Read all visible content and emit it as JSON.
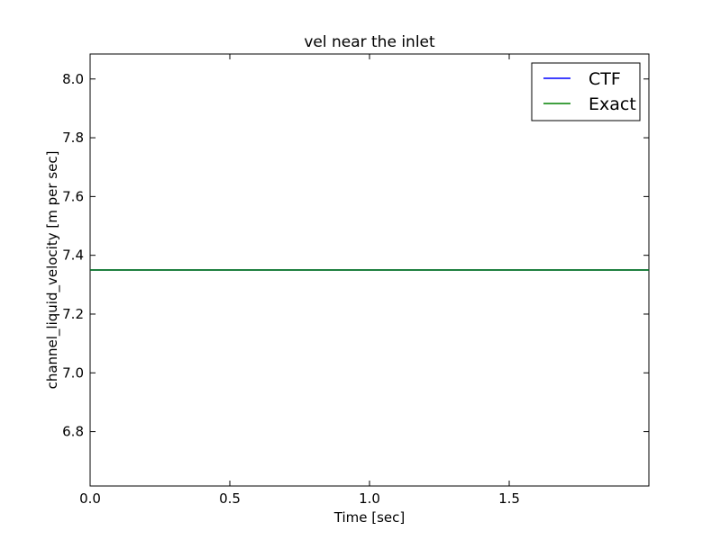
{
  "chart_data": {
    "type": "line",
    "title": "vel near the inlet",
    "xlabel": "Time [sec]",
    "ylabel": "channel_liquid_velocity [m per sec]",
    "xlim": [
      0.0,
      2.0
    ],
    "ylim": [
      6.615,
      8.085
    ],
    "x_ticks": [
      0.0,
      0.5,
      1.0,
      1.5
    ],
    "x_tick_labels": [
      "0.0",
      "0.5",
      "1.0",
      "1.5"
    ],
    "y_ticks": [
      6.8,
      7.0,
      7.2,
      7.4,
      7.6,
      7.8,
      8.0
    ],
    "y_tick_labels": [
      "6.8",
      "7.0",
      "7.2",
      "7.4",
      "7.6",
      "7.8",
      "8.0"
    ],
    "grid": false,
    "legend_position": "top-right",
    "series": [
      {
        "name": "CTF",
        "color": "#0000ff",
        "x": [
          0.0,
          2.0
        ],
        "y": [
          7.35,
          7.35
        ]
      },
      {
        "name": "Exact",
        "color": "#008000",
        "x": [
          0.0,
          2.0
        ],
        "y": [
          7.35,
          7.35
        ]
      }
    ]
  }
}
